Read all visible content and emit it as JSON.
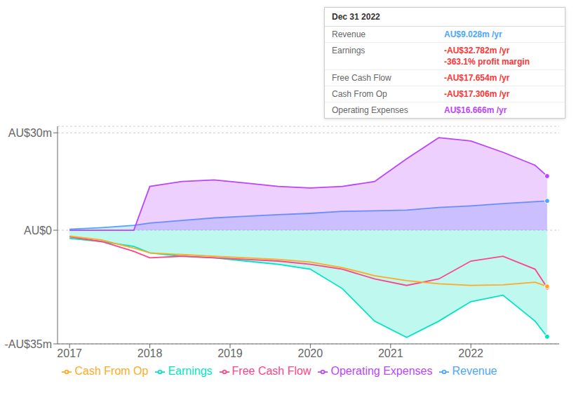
{
  "chart_data": {
    "type": "line",
    "x": [
      2017.0,
      2017.4,
      2017.8,
      2018.0,
      2018.4,
      2018.8,
      2019.2,
      2019.6,
      2020.0,
      2020.4,
      2020.8,
      2021.2,
      2021.6,
      2022.0,
      2022.4,
      2022.8,
      2022.95
    ],
    "series": [
      {
        "name": "Revenue",
        "type": "area",
        "color": "#4da6ff",
        "values": [
          0.3,
          0.8,
          1.5,
          2.2,
          3.0,
          3.8,
          4.3,
          4.8,
          5.2,
          5.8,
          6.0,
          6.2,
          7.0,
          7.5,
          8.2,
          8.8,
          9.028
        ]
      },
      {
        "name": "Earnings",
        "type": "area",
        "color": "#00e5c0",
        "values": [
          -2.5,
          -3.5,
          -5.0,
          -7.0,
          -8.0,
          -8.5,
          -9.5,
          -10.5,
          -12.0,
          -18.0,
          -28.0,
          -33.0,
          -28.0,
          -22.0,
          -20.0,
          -28.0,
          -32.782
        ]
      },
      {
        "name": "Free Cash Flow",
        "type": "line",
        "color": "#ff4488",
        "values": [
          -2.0,
          -3.5,
          -6.5,
          -8.5,
          -8.0,
          -8.5,
          -9.0,
          -9.5,
          -10.5,
          -12.0,
          -15.0,
          -17.0,
          -15.0,
          -9.5,
          -8.0,
          -12.0,
          -17.654
        ]
      },
      {
        "name": "Cash From Op",
        "type": "line",
        "color": "#ffaa22",
        "values": [
          -1.8,
          -3.0,
          -5.5,
          -7.0,
          -7.5,
          -8.0,
          -8.5,
          -9.0,
          -9.8,
          -11.5,
          -14.0,
          -15.5,
          -16.5,
          -17.0,
          -16.8,
          -16.0,
          -17.306
        ]
      },
      {
        "name": "Operating Expenses",
        "type": "area",
        "color": "#bb44ff",
        "values": [
          0.0,
          0.0,
          0.0,
          13.5,
          15.0,
          15.5,
          14.5,
          13.5,
          13.0,
          13.5,
          15.0,
          22.0,
          28.5,
          27.5,
          24.0,
          20.0,
          16.666
        ]
      }
    ],
    "xlim": [
      2016.85,
      2023.1
    ],
    "xticks": [
      2017,
      2018,
      2019,
      2020,
      2021,
      2022
    ],
    "ylim": [
      -35,
      32
    ],
    "yticks": [
      {
        "value": -35,
        "label": "-AU$35m"
      },
      {
        "value": 0,
        "label": "AU$0"
      },
      {
        "value": 30,
        "label": "AU$30m"
      }
    ],
    "grid": true,
    "legend": "bottom",
    "annotations": [
      {
        "title": "Dec 31 2022",
        "rows": [
          {
            "label": "Revenue",
            "value": "AU$9.028m /yr",
            "color": "#4da6ff"
          },
          {
            "label": "Earnings",
            "value": "-AU$32.782m /yr",
            "note": "-363.1% profit margin",
            "color": "#ff3333"
          },
          {
            "label": "Free Cash Flow",
            "value": "-AU$17.654m /yr",
            "color": "#ff3333"
          },
          {
            "label": "Cash From Op",
            "value": "-AU$17.306m /yr",
            "color": "#ff3333"
          },
          {
            "label": "Operating Expenses",
            "value": "AU$16.666m /yr",
            "color": "#bb44ff"
          }
        ]
      }
    ]
  }
}
